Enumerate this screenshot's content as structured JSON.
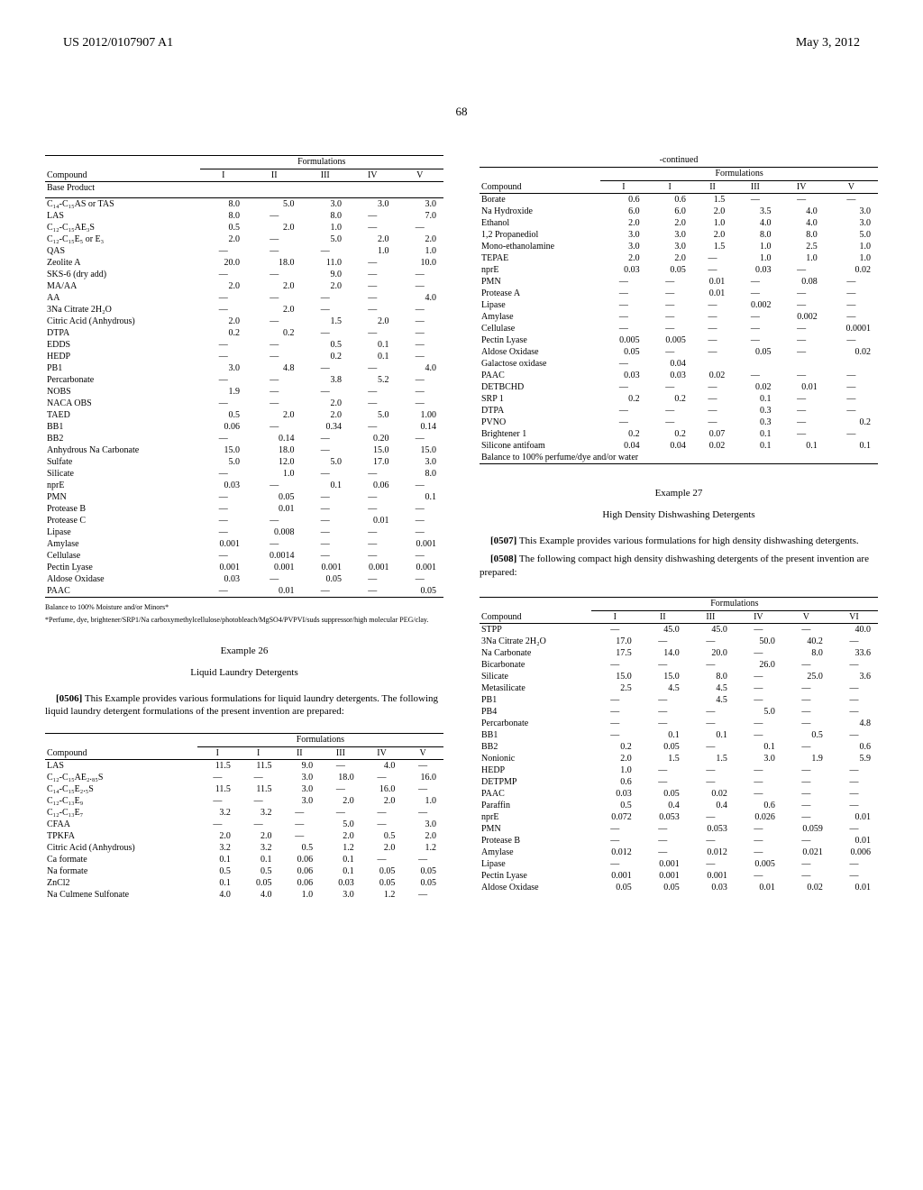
{
  "header": {
    "patent": "US 2012/0107907 A1",
    "date": "May 3, 2012"
  },
  "page_number": "68",
  "table1": {
    "caption": "Formulations",
    "col_labels": [
      "Compound",
      "I",
      "II",
      "III",
      "IV",
      "V"
    ],
    "section": "Base Product",
    "rows": [
      [
        "C₁₄-C₁₅AS or TAS",
        "8.0",
        "5.0",
        "3.0",
        "3.0",
        "3.0"
      ],
      [
        "LAS",
        "8.0",
        "—",
        "8.0",
        "—",
        "7.0"
      ],
      [
        "C₁₂-C₁₅AE₃S",
        "0.5",
        "2.0",
        "1.0",
        "—",
        "—"
      ],
      [
        "C₁₂-C₁₅E₅ or E₃",
        "2.0",
        "—",
        "5.0",
        "2.0",
        "2.0"
      ],
      [
        "QAS",
        "—",
        "—",
        "—",
        "1.0",
        "1.0"
      ],
      [
        "Zeolite A",
        "20.0",
        "18.0",
        "11.0",
        "—",
        "10.0"
      ],
      [
        "SKS-6 (dry add)",
        "—",
        "—",
        "9.0",
        "—",
        "—"
      ],
      [
        "MA/AA",
        "2.0",
        "2.0",
        "2.0",
        "—",
        "—"
      ],
      [
        "AA",
        "—",
        "—",
        "—",
        "—",
        "4.0"
      ],
      [
        "3Na Citrate 2H₂O",
        "—",
        "2.0",
        "—",
        "—",
        "—"
      ],
      [
        "Citric Acid (Anhydrous)",
        "2.0",
        "—",
        "1.5",
        "2.0",
        "—"
      ],
      [
        "DTPA",
        "0.2",
        "0.2",
        "—",
        "—",
        "—"
      ],
      [
        "EDDS",
        "—",
        "—",
        "0.5",
        "0.1",
        "—"
      ],
      [
        "HEDP",
        "—",
        "—",
        "0.2",
        "0.1",
        "—"
      ],
      [
        "PB1",
        "3.0",
        "4.8",
        "—",
        "—",
        "4.0"
      ],
      [
        "Percarbonate",
        "—",
        "—",
        "3.8",
        "5.2",
        "—"
      ],
      [
        "NOBS",
        "1.9",
        "—",
        "—",
        "—",
        "—"
      ],
      [
        "NACA OBS",
        "—",
        "—",
        "2.0",
        "—",
        "—"
      ],
      [
        "TAED",
        "0.5",
        "2.0",
        "2.0",
        "5.0",
        "1.00"
      ],
      [
        "BB1",
        "0.06",
        "—",
        "0.34",
        "—",
        "0.14"
      ],
      [
        "BB2",
        "—",
        "0.14",
        "—",
        "0.20",
        "—"
      ],
      [
        "Anhydrous Na Carbonate",
        "15.0",
        "18.0",
        "—",
        "15.0",
        "15.0"
      ],
      [
        "Sulfate",
        "5.0",
        "12.0",
        "5.0",
        "17.0",
        "3.0"
      ],
      [
        "Silicate",
        "—",
        "1.0",
        "—",
        "—",
        "8.0"
      ],
      [
        "nprE",
        "0.03",
        "—",
        "0.1",
        "0.06",
        "—"
      ],
      [
        "PMN",
        "—",
        "0.05",
        "—",
        "—",
        "0.1"
      ],
      [
        "Protease B",
        "—",
        "0.01",
        "—",
        "—",
        "—"
      ],
      [
        "Protease C",
        "—",
        "—",
        "—",
        "0.01",
        "—"
      ],
      [
        "Lipase",
        "—",
        "0.008",
        "—",
        "—",
        "—"
      ],
      [
        "Amylase",
        "0.001",
        "—",
        "—",
        "—",
        "0.001"
      ],
      [
        "Cellulase",
        "—",
        "0.0014",
        "—",
        "—",
        "—"
      ],
      [
        "Pectin Lyase",
        "0.001",
        "0.001",
        "0.001",
        "0.001",
        "0.001"
      ],
      [
        "Aldose Oxidase",
        "0.03",
        "—",
        "0.05",
        "—",
        "—"
      ],
      [
        "PAAC",
        "—",
        "0.01",
        "—",
        "—",
        "0.05"
      ]
    ],
    "footnote1": "Balance to 100% Moisture and/or Minors*",
    "footnote2": "*Perfume, dye, brightener/SRP1/Na carboxymethylcellulose/photobleach/MgSO4/PVPVI/suds suppressor/high molecular PEG/clay."
  },
  "example26": {
    "title": "Example 26",
    "subtitle": "Liquid Laundry Detergents",
    "para_num": "[0506]",
    "para_text": "This Example provides various formulations for liquid laundry detergents. The following liquid laundry detergent formulations of the present invention are prepared:"
  },
  "table2": {
    "caption": "Formulations",
    "col_labels": [
      "Compound",
      "I",
      "I",
      "II",
      "III",
      "IV",
      "V"
    ],
    "rows": [
      [
        "LAS",
        "11.5",
        "11.5",
        "9.0",
        "—",
        "4.0",
        "—"
      ],
      [
        "C₁₂-C₁₅AE₂.₈₅S",
        "—",
        "—",
        "3.0",
        "18.0",
        "—",
        "16.0"
      ],
      [
        "C₁₄-C₁₅E₂.₅S",
        "11.5",
        "11.5",
        "3.0",
        "—",
        "16.0",
        "—"
      ],
      [
        "C₁₂-C₁₃E₉",
        "—",
        "—",
        "3.0",
        "2.0",
        "2.0",
        "1.0"
      ],
      [
        "C₁₂-C₁₃E₇",
        "3.2",
        "3.2",
        "—",
        "—",
        "—",
        "—"
      ],
      [
        "CFAA",
        "—",
        "—",
        "—",
        "5.0",
        "—",
        "3.0"
      ],
      [
        "TPKFA",
        "2.0",
        "2.0",
        "—",
        "2.0",
        "0.5",
        "2.0"
      ],
      [
        "Citric Acid (Anhydrous)",
        "3.2",
        "3.2",
        "0.5",
        "1.2",
        "2.0",
        "1.2"
      ],
      [
        "Ca formate",
        "0.1",
        "0.1",
        "0.06",
        "0.1",
        "—",
        "—"
      ],
      [
        "Na formate",
        "0.5",
        "0.5",
        "0.06",
        "0.1",
        "0.05",
        "0.05"
      ],
      [
        "ZnCl2",
        "0.1",
        "0.05",
        "0.06",
        "0.03",
        "0.05",
        "0.05"
      ],
      [
        "Na Culmene Sulfonate",
        "4.0",
        "4.0",
        "1.0",
        "3.0",
        "1.2",
        "—"
      ]
    ]
  },
  "table3": {
    "continued": "-continued",
    "caption": "Formulations",
    "col_labels": [
      "Compound",
      "I",
      "I",
      "II",
      "III",
      "IV",
      "V"
    ],
    "rows": [
      [
        "Borate",
        "0.6",
        "0.6",
        "1.5",
        "—",
        "—",
        "—"
      ],
      [
        "Na Hydroxide",
        "6.0",
        "6.0",
        "2.0",
        "3.5",
        "4.0",
        "3.0"
      ],
      [
        "Ethanol",
        "2.0",
        "2.0",
        "1.0",
        "4.0",
        "4.0",
        "3.0"
      ],
      [
        "1,2 Propanediol",
        "3.0",
        "3.0",
        "2.0",
        "8.0",
        "8.0",
        "5.0"
      ],
      [
        "Mono-ethanolamine",
        "3.0",
        "3.0",
        "1.5",
        "1.0",
        "2.5",
        "1.0"
      ],
      [
        "TEPAE",
        "2.0",
        "2.0",
        "—",
        "1.0",
        "1.0",
        "1.0"
      ],
      [
        "nprE",
        "0.03",
        "0.05",
        "—",
        "0.03",
        "—",
        "0.02"
      ],
      [
        "PMN",
        "—",
        "—",
        "0.01",
        "—",
        "0.08",
        "—"
      ],
      [
        "Protease A",
        "—",
        "—",
        "0.01",
        "—",
        "—",
        "—"
      ],
      [
        "Lipase",
        "—",
        "—",
        "—",
        "0.002",
        "—",
        "—"
      ],
      [
        "Amylase",
        "—",
        "—",
        "—",
        "—",
        "0.002",
        "—"
      ],
      [
        "Cellulase",
        "—",
        "—",
        "—",
        "—",
        "—",
        "0.0001"
      ],
      [
        "Pectin Lyase",
        "0.005",
        "0.005",
        "—",
        "—",
        "—",
        "—"
      ],
      [
        "Aldose Oxidase",
        "0.05",
        "—",
        "—",
        "0.05",
        "—",
        "0.02"
      ],
      [
        "Galactose oxidase",
        "—",
        "0.04",
        "",
        "",
        "",
        ""
      ],
      [
        "PAAC",
        "0.03",
        "0.03",
        "0.02",
        "—",
        "—",
        "—"
      ],
      [
        "DETBCHD",
        "—",
        "—",
        "—",
        "0.02",
        "0.01",
        "—"
      ],
      [
        "SRP 1",
        "0.2",
        "0.2",
        "—",
        "0.1",
        "—",
        "—"
      ],
      [
        "DTPA",
        "—",
        "—",
        "—",
        "0.3",
        "—",
        "—"
      ],
      [
        "PVNO",
        "—",
        "—",
        "—",
        "0.3",
        "—",
        "0.2"
      ],
      [
        "Brightener 1",
        "0.2",
        "0.2",
        "0.07",
        "0.1",
        "—",
        "—"
      ],
      [
        "Silicone antifoam",
        "0.04",
        "0.04",
        "0.02",
        "0.1",
        "0.1",
        "0.1"
      ]
    ],
    "balance": "Balance to 100% perfume/dye and/or water"
  },
  "example27": {
    "title": "Example 27",
    "subtitle": "High Density Dishwashing Detergents",
    "para1_num": "[0507]",
    "para1_text": "This Example provides various formulations for high density dishwashing detergents.",
    "para2_num": "[0508]",
    "para2_text": "The following compact high density dishwashing detergents of the present invention are prepared:"
  },
  "table4": {
    "caption": "Formulations",
    "col_labels": [
      "Compound",
      "I",
      "II",
      "III",
      "IV",
      "V",
      "VI"
    ],
    "rows": [
      [
        "STPP",
        "—",
        "45.0",
        "45.0",
        "—",
        "—",
        "40.0"
      ],
      [
        "3Na Citrate 2H₂O",
        "17.0",
        "—",
        "—",
        "50.0",
        "40.2",
        "—"
      ],
      [
        "Na Carbonate",
        "17.5",
        "14.0",
        "20.0",
        "—",
        "8.0",
        "33.6"
      ],
      [
        "Bicarbonate",
        "—",
        "—",
        "—",
        "26.0",
        "—",
        "—"
      ],
      [
        "Silicate",
        "15.0",
        "15.0",
        "8.0",
        "—",
        "25.0",
        "3.6"
      ],
      [
        "Metasilicate",
        "2.5",
        "4.5",
        "4.5",
        "—",
        "—",
        "—"
      ],
      [
        "PB1",
        "—",
        "—",
        "4.5",
        "—",
        "—",
        "—"
      ],
      [
        "PB4",
        "—",
        "—",
        "—",
        "5.0",
        "—",
        "—"
      ],
      [
        "Percarbonate",
        "—",
        "—",
        "—",
        "—",
        "—",
        "4.8"
      ],
      [
        "BB1",
        "—",
        "0.1",
        "0.1",
        "—",
        "0.5",
        "—"
      ],
      [
        "BB2",
        "0.2",
        "0.05",
        "—",
        "0.1",
        "—",
        "0.6"
      ],
      [
        "Nonionic",
        "2.0",
        "1.5",
        "1.5",
        "3.0",
        "1.9",
        "5.9"
      ],
      [
        "HEDP",
        "1.0",
        "—",
        "—",
        "—",
        "—",
        "—"
      ],
      [
        "DETPMP",
        "0.6",
        "—",
        "—",
        "—",
        "—",
        "—"
      ],
      [
        "PAAC",
        "0.03",
        "0.05",
        "0.02",
        "—",
        "—",
        "—"
      ],
      [
        "Paraffin",
        "0.5",
        "0.4",
        "0.4",
        "0.6",
        "—",
        "—"
      ],
      [
        "nprE",
        "0.072",
        "0.053",
        "—",
        "0.026",
        "—",
        "0.01"
      ],
      [
        "PMN",
        "—",
        "—",
        "0.053",
        "—",
        "0.059",
        "—"
      ],
      [
        "Protease B",
        "—",
        "—",
        "—",
        "—",
        "—",
        "0.01"
      ],
      [
        "Amylase",
        "0.012",
        "—",
        "0.012",
        "—",
        "0.021",
        "0.006"
      ],
      [
        "Lipase",
        "—",
        "0.001",
        "—",
        "0.005",
        "—",
        "—"
      ],
      [
        "Pectin Lyase",
        "0.001",
        "0.001",
        "0.001",
        "—",
        "—",
        "—"
      ],
      [
        "Aldose Oxidase",
        "0.05",
        "0.05",
        "0.03",
        "0.01",
        "0.02",
        "0.01"
      ]
    ]
  }
}
